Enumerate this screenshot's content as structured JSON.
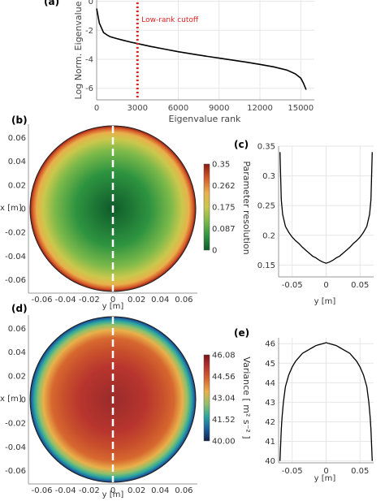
{
  "chart_data": [
    {
      "id": "a",
      "type": "line",
      "panel_label": "(a)",
      "xlabel": "Eigenvalue rank",
      "ylabel": "Log Norm. Eigenvalue",
      "xticks": [
        0,
        3000,
        6000,
        9000,
        12000,
        15000
      ],
      "yticks": [
        -6,
        -4,
        -2,
        0
      ],
      "xlim": [
        0,
        16000
      ],
      "ylim": [
        -6.8,
        0.2
      ],
      "grid": true,
      "annotation": "Low-rank cutoff",
      "cutoff_x": 3000,
      "cutoff_color": "#e02020",
      "line_color": "#000000",
      "x": [
        0,
        200,
        500,
        800,
        1000,
        1500,
        2000,
        2500,
        3000,
        4000,
        5000,
        6000,
        7000,
        8000,
        9000,
        10000,
        11000,
        12000,
        13000,
        14000,
        14600,
        15000,
        15200,
        15400
      ],
      "y": [
        -0.5,
        -1.5,
        -2.15,
        -2.35,
        -2.45,
        -2.58,
        -2.7,
        -2.82,
        -2.92,
        -3.12,
        -3.3,
        -3.48,
        -3.63,
        -3.78,
        -3.92,
        -4.06,
        -4.2,
        -4.35,
        -4.52,
        -4.75,
        -5.0,
        -5.3,
        -5.65,
        -6.1
      ]
    },
    {
      "id": "b",
      "type": "heatmap",
      "panel_label": "(b)",
      "xlabel": "y [m]",
      "ylabel": "x [m]",
      "xticks": [
        -0.06,
        -0.04,
        -0.02,
        0,
        0.02,
        0.04,
        0.06
      ],
      "yticks": [
        0.06,
        0.04,
        0.02,
        0,
        -0.02,
        -0.04,
        -0.06
      ],
      "xtick_labels": [
        "-0.06",
        "-0.04",
        "-0.02",
        "0",
        "0.02",
        "0.04",
        "0.06"
      ],
      "ytick_labels": [
        "0.06",
        "0.04",
        "0.02",
        "0",
        "-0.02",
        "-0.04",
        "-0.06"
      ],
      "colorbar_label": "Parameter resolution",
      "colorbar_ticks": [
        "0.35",
        "0.262",
        "0.175",
        "0.087",
        "0"
      ],
      "colormap": [
        "#8b1a12",
        "#d55a2a",
        "#e9b04a",
        "#c9c84c",
        "#7cb94a",
        "#2e9440",
        "#0e5a2a"
      ],
      "center_value": 0.15,
      "edge_value": 0.35
    },
    {
      "id": "c",
      "type": "line",
      "panel_label": "(c)",
      "xlabel": "y [m]",
      "xticks": [
        -0.05,
        0,
        0.05
      ],
      "xtick_labels": [
        "-0.05",
        "0",
        "0.05"
      ],
      "yticks": [
        0.15,
        0.2,
        0.25,
        0.3,
        0.35
      ],
      "ytick_labels": [
        "0.15",
        "0.2",
        "0.25",
        "0.3",
        "0.35"
      ],
      "xlim": [
        -0.07,
        0.07
      ],
      "ylim": [
        0.13,
        0.35
      ],
      "grid": true,
      "x": [
        -0.068,
        -0.067,
        -0.066,
        -0.064,
        -0.06,
        -0.055,
        -0.05,
        -0.045,
        -0.04,
        -0.035,
        -0.03,
        -0.025,
        -0.02,
        -0.015,
        -0.01,
        -0.005,
        0,
        0.005,
        0.01,
        0.015,
        0.02,
        0.025,
        0.03,
        0.035,
        0.04,
        0.045,
        0.05,
        0.055,
        0.06,
        0.064,
        0.066,
        0.067,
        0.068
      ],
      "y": [
        0.34,
        0.3,
        0.26,
        0.235,
        0.215,
        0.205,
        0.197,
        0.191,
        0.186,
        0.18,
        0.175,
        0.17,
        0.165,
        0.162,
        0.158,
        0.155,
        0.153,
        0.155,
        0.158,
        0.162,
        0.165,
        0.17,
        0.175,
        0.18,
        0.186,
        0.191,
        0.197,
        0.205,
        0.215,
        0.235,
        0.26,
        0.3,
        0.34
      ]
    },
    {
      "id": "d",
      "type": "heatmap",
      "panel_label": "(d)",
      "xlabel": "y [m]",
      "ylabel": "x [m]",
      "xticks": [
        -0.06,
        -0.04,
        -0.02,
        0,
        0.02,
        0.04,
        0.06
      ],
      "yticks": [
        0.06,
        0.04,
        0.02,
        0,
        -0.02,
        -0.04,
        -0.06
      ],
      "xtick_labels": [
        "-0.06",
        "-0.04",
        "-0.02",
        "0",
        "0.02",
        "0.04",
        "0.06"
      ],
      "ytick_labels": [
        "0.06",
        "0.04",
        "0.02",
        "0",
        "-0.02",
        "-0.04",
        "-0.06"
      ],
      "colorbar_label": "Variance [ m² s⁻² ]",
      "colorbar_ticks": [
        "46.08",
        "44.56",
        "43.04",
        "41.52",
        "40.00"
      ],
      "colormap": [
        "#7a1418",
        "#b8352e",
        "#d7682f",
        "#e9b04a",
        "#8fc06a",
        "#2aa6a0",
        "#1e5fa0",
        "#10204a"
      ],
      "center_value": 46.0,
      "edge_value": 40.0
    },
    {
      "id": "e",
      "type": "line",
      "panel_label": "(e)",
      "xlabel": "y [m]",
      "xticks": [
        -0.05,
        0,
        0.05
      ],
      "xtick_labels": [
        "-0.05",
        "0",
        "0.05"
      ],
      "yticks": [
        40,
        41,
        42,
        43,
        44,
        45,
        46
      ],
      "ytick_labels": [
        "40",
        "41",
        "42",
        "43",
        "44",
        "45",
        "46"
      ],
      "xlim": [
        -0.07,
        0.07
      ],
      "ylim": [
        39.9,
        46.3
      ],
      "grid": true,
      "x": [
        -0.068,
        -0.067,
        -0.066,
        -0.065,
        -0.063,
        -0.06,
        -0.055,
        -0.05,
        -0.045,
        -0.04,
        -0.035,
        -0.03,
        -0.025,
        -0.02,
        -0.015,
        -0.01,
        -0.005,
        0,
        0.005,
        0.01,
        0.015,
        0.02,
        0.025,
        0.03,
        0.035,
        0.04,
        0.045,
        0.05,
        0.055,
        0.06,
        0.063,
        0.065,
        0.066,
        0.067,
        0.068
      ],
      "y": [
        40.0,
        40.8,
        41.6,
        42.2,
        43.0,
        43.8,
        44.4,
        44.8,
        45.1,
        45.3,
        45.5,
        45.6,
        45.7,
        45.8,
        45.9,
        45.95,
        46.0,
        46.05,
        46.0,
        45.95,
        45.9,
        45.8,
        45.7,
        45.6,
        45.5,
        45.3,
        45.1,
        44.8,
        44.4,
        43.8,
        43.0,
        42.2,
        41.6,
        40.8,
        40.0
      ]
    }
  ]
}
